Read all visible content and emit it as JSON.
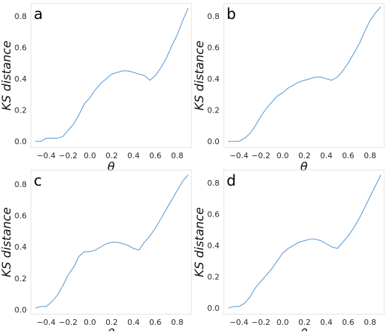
{
  "chart_data": [
    {
      "type": "line",
      "panel_label": "a",
      "xlabel": "θ",
      "ylabel": "KS distance",
      "xlim": [
        -0.54,
        0.93
      ],
      "ylim": [
        -0.04,
        0.88
      ],
      "xticks": [
        -0.4,
        -0.2,
        0.0,
        0.2,
        0.4,
        0.6,
        0.8
      ],
      "xtick_labels": [
        "−0.4",
        "−0.2",
        "0.0",
        "0.2",
        "0.4",
        "0.6",
        "0.8"
      ],
      "yticks": [
        0.0,
        0.2,
        0.4,
        0.6,
        0.8
      ],
      "ytick_labels": [
        "0.0",
        "0.2",
        "0.4",
        "0.6",
        "0.8"
      ],
      "grid": false,
      "color": "#5b9bd5",
      "x": [
        -0.5,
        -0.45,
        -0.4,
        -0.35,
        -0.3,
        -0.25,
        -0.2,
        -0.15,
        -0.1,
        -0.05,
        0.0,
        0.05,
        0.1,
        0.15,
        0.2,
        0.25,
        0.3,
        0.35,
        0.4,
        0.45,
        0.5,
        0.55,
        0.6,
        0.65,
        0.7,
        0.75,
        0.8,
        0.85,
        0.9
      ],
      "y": [
        0.0,
        0.0,
        0.02,
        0.02,
        0.02,
        0.03,
        0.07,
        0.11,
        0.17,
        0.24,
        0.28,
        0.33,
        0.37,
        0.4,
        0.43,
        0.44,
        0.45,
        0.45,
        0.44,
        0.43,
        0.42,
        0.39,
        0.42,
        0.47,
        0.53,
        0.61,
        0.68,
        0.77,
        0.85
      ]
    },
    {
      "type": "line",
      "panel_label": "b",
      "xlabel": "θ",
      "ylabel": "KS distance",
      "xlim": [
        -0.54,
        0.93
      ],
      "ylim": [
        -0.04,
        0.88
      ],
      "xticks": [
        -0.4,
        -0.2,
        0.0,
        0.2,
        0.4,
        0.6,
        0.8
      ],
      "xtick_labels": [
        "−0.4",
        "−0.2",
        "0.0",
        "0.2",
        "0.4",
        "0.6",
        "0.8"
      ],
      "yticks": [
        0.0,
        0.2,
        0.4,
        0.6,
        0.8
      ],
      "ytick_labels": [
        "0.0",
        "0.2",
        "0.4",
        "0.6",
        "0.8"
      ],
      "grid": false,
      "color": "#5b9bd5",
      "x": [
        -0.5,
        -0.45,
        -0.4,
        -0.35,
        -0.3,
        -0.25,
        -0.2,
        -0.15,
        -0.1,
        -0.05,
        0.0,
        0.05,
        0.1,
        0.15,
        0.2,
        0.25,
        0.3,
        0.35,
        0.4,
        0.45,
        0.5,
        0.55,
        0.6,
        0.65,
        0.7,
        0.75,
        0.8,
        0.85,
        0.9
      ],
      "y": [
        0.0,
        0.0,
        0.0,
        0.02,
        0.05,
        0.1,
        0.16,
        0.21,
        0.25,
        0.29,
        0.31,
        0.34,
        0.36,
        0.38,
        0.39,
        0.4,
        0.41,
        0.41,
        0.4,
        0.39,
        0.41,
        0.45,
        0.5,
        0.56,
        0.62,
        0.7,
        0.77,
        0.82,
        0.86
      ]
    },
    {
      "type": "line",
      "panel_label": "c",
      "xlabel": "θ",
      "ylabel": "KS distance",
      "xlim": [
        -0.54,
        0.93
      ],
      "ylim": [
        -0.03,
        0.89
      ],
      "xticks": [
        -0.4,
        -0.2,
        0.0,
        0.2,
        0.4,
        0.6,
        0.8
      ],
      "xtick_labels": [
        "−0.4",
        "−0.2",
        "0.0",
        "0.2",
        "0.4",
        "0.6",
        "0.8"
      ],
      "yticks": [
        0.0,
        0.2,
        0.4,
        0.6,
        0.8
      ],
      "ytick_labels": [
        "0.0",
        "0.2",
        "0.4",
        "0.6",
        "0.8"
      ],
      "grid": false,
      "color": "#5b9bd5",
      "x": [
        -0.5,
        -0.45,
        -0.4,
        -0.35,
        -0.3,
        -0.25,
        -0.2,
        -0.15,
        -0.1,
        -0.05,
        0.0,
        0.05,
        0.1,
        0.15,
        0.2,
        0.25,
        0.3,
        0.35,
        0.4,
        0.45,
        0.5,
        0.55,
        0.6,
        0.65,
        0.7,
        0.75,
        0.8,
        0.85,
        0.9
      ],
      "y": [
        0.01,
        0.02,
        0.02,
        0.05,
        0.09,
        0.15,
        0.22,
        0.27,
        0.34,
        0.37,
        0.37,
        0.38,
        0.4,
        0.42,
        0.43,
        0.43,
        0.42,
        0.41,
        0.39,
        0.38,
        0.43,
        0.47,
        0.52,
        0.58,
        0.64,
        0.7,
        0.76,
        0.82,
        0.86
      ]
    },
    {
      "type": "line",
      "panel_label": "d",
      "xlabel": "θ",
      "ylabel": "KS distance",
      "xlim": [
        -0.54,
        0.93
      ],
      "ylim": [
        -0.04,
        0.88
      ],
      "xticks": [
        -0.4,
        -0.2,
        0.0,
        0.2,
        0.4,
        0.6,
        0.8
      ],
      "xtick_labels": [
        "−0.4",
        "−0.2",
        "0.0",
        "0.2",
        "0.4",
        "0.6",
        "0.8"
      ],
      "yticks": [
        0.0,
        0.2,
        0.4,
        0.6,
        0.8
      ],
      "ytick_labels": [
        "0.0",
        "0.2",
        "0.4",
        "0.6",
        "0.8"
      ],
      "grid": false,
      "color": "#5b9bd5",
      "x": [
        -0.5,
        -0.45,
        -0.4,
        -0.35,
        -0.3,
        -0.25,
        -0.2,
        -0.15,
        -0.1,
        -0.05,
        0.0,
        0.05,
        0.1,
        0.15,
        0.2,
        0.25,
        0.3,
        0.35,
        0.4,
        0.45,
        0.5,
        0.55,
        0.6,
        0.65,
        0.7,
        0.75,
        0.8,
        0.85,
        0.9
      ],
      "y": [
        0.0,
        0.01,
        0.01,
        0.03,
        0.07,
        0.13,
        0.17,
        0.21,
        0.25,
        0.3,
        0.35,
        0.38,
        0.4,
        0.42,
        0.43,
        0.44,
        0.44,
        0.43,
        0.41,
        0.39,
        0.38,
        0.42,
        0.46,
        0.51,
        0.57,
        0.64,
        0.71,
        0.78,
        0.85
      ]
    }
  ]
}
